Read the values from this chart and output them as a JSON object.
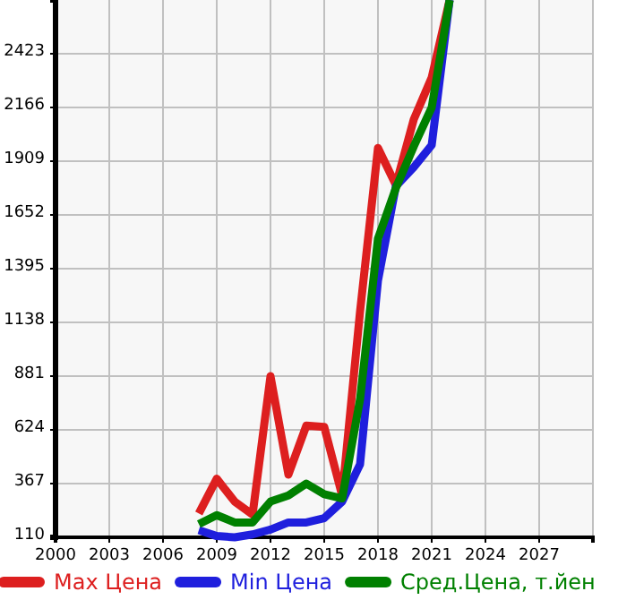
{
  "chart_data": {
    "type": "line",
    "x": [
      2008,
      2009,
      2010,
      2011,
      2012,
      2013,
      2014,
      2015,
      2016,
      2017,
      2018,
      2019,
      2020,
      2021,
      2022
    ],
    "series": [
      {
        "name": "Max Цена",
        "color": "#dd1f1f",
        "values": [
          224,
          390,
          281,
          219,
          881,
          410,
          644,
          638,
          310,
          1190,
          1972,
          1795,
          2109,
          2309,
          2680
        ]
      },
      {
        "name": "Min Цена",
        "color": "#1f1fdd",
        "values": [
          144,
          116,
          110,
          124,
          147,
          181,
          181,
          202,
          281,
          459,
          1338,
          1789,
          1880,
          1986,
          2680
        ]
      },
      {
        "name": "Сред.Цена, т.йен",
        "color": "#008000",
        "values": [
          173,
          216,
          181,
          181,
          281,
          310,
          367,
          316,
          296,
          770,
          1538,
          1781,
          1980,
          2166,
          2680
        ]
      }
    ],
    "xlim": [
      2000,
      2030
    ],
    "xticks": [
      2000,
      2003,
      2006,
      2009,
      2012,
      2015,
      2018,
      2021,
      2024,
      2027
    ],
    "ylim": [
      110,
      2680
    ],
    "yticks": [
      110,
      367,
      624,
      881,
      1138,
      1395,
      1652,
      1909,
      2166,
      2423
    ],
    "grid": true,
    "legend": "bottom",
    "marker": "none",
    "line_style": "solid"
  }
}
